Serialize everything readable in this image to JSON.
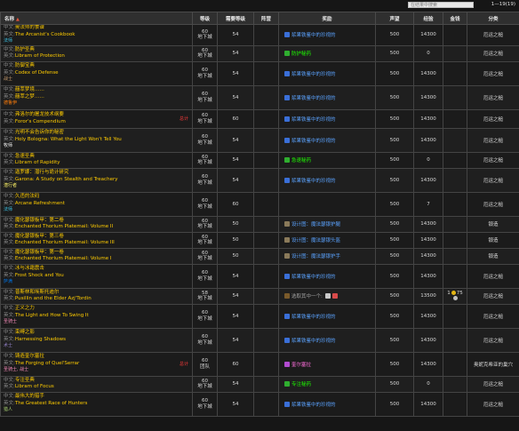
{
  "topbar": {
    "search_placeholder": "在结果中搜索",
    "pager": "1—19(19)"
  },
  "headers": {
    "name": "名称",
    "level": "等级",
    "req_level": "需要等级",
    "camp": "阵营",
    "reward": "奖励",
    "rep": "声望",
    "xp": "经验",
    "money": "金钱",
    "category": "分类"
  },
  "labels": {
    "cn": "中文:",
    "en": "英文:"
  },
  "colors": {
    "cn_text": "#ffcc00",
    "en_text": "#ffcc00",
    "teal": "#1e90ff",
    "skin": "#5ba3ff",
    "green": "#1eff00",
    "pink": "#ff6fdc",
    "red": "#ff3b3b"
  },
  "rows": [
    {
      "cn": "奥法师的食谱",
      "en": "The Arcanist's Cookbook",
      "sub": "法师",
      "sub_color": "#3fc7eb",
      "level": "60",
      "level_sub": "地下城",
      "req": "54",
      "reward_text": "浆果铁鉴中的珍视的",
      "reward_color": "#5ba3ff",
      "icon": "gem-blue",
      "rep": "500",
      "xp": "14300",
      "money": "",
      "cat": "厄运之槌"
    },
    {
      "cn": "防护圣典",
      "en": "Librarn of Protection",
      "sub": "",
      "sub_color": "",
      "level": "60",
      "level_sub": "地下城",
      "req": "54",
      "reward_text": "防护秘药",
      "reward_color": "#1eff00",
      "icon": "gem-green",
      "rep": "500",
      "xp": "0",
      "money": "",
      "cat": "厄运之槌"
    },
    {
      "cn": "防御宝典",
      "en": "Codex of Defense",
      "sub": "战士",
      "sub_color": "#c79c6e",
      "level": "60",
      "level_sub": "地下城",
      "req": "54",
      "reward_text": "浆果铁鉴中的珍视的",
      "reward_color": "#5ba3ff",
      "icon": "gem-blue",
      "rep": "500",
      "xp": "14300",
      "money": "",
      "cat": "厄运之槌"
    },
    {
      "cn": "囍萃梦境……",
      "en": "囍萃之梦……",
      "sub": "德鲁伊",
      "sub_color": "#ff7d0a",
      "level": "60",
      "level_sub": "地下城",
      "req": "54",
      "reward_text": "浆果铁鉴中的珍视的",
      "reward_color": "#5ba3ff",
      "icon": "gem-blue",
      "rep": "500",
      "xp": "14300",
      "money": "",
      "cat": "厄运之槌"
    },
    {
      "cn": "弗洛尔的屠龙技术纲要",
      "en": "Foror's Compendium",
      "sub": "",
      "sub_color": "",
      "flag": "总计",
      "level": "60",
      "level_sub": "地下城",
      "req": "60",
      "reward_text": "浆果铁鉴中的珍视的",
      "reward_color": "#5ba3ff",
      "icon": "gem-blue",
      "rep": "500",
      "xp": "14300",
      "money": "",
      "cat": "厄运之槌"
    },
    {
      "cn": "光明不会告诉你的秘密",
      "en": "Holy Bologna: What the Light Won't Tell You",
      "sub": "牧师",
      "sub_color": "#ffffff",
      "level": "60",
      "level_sub": "地下城",
      "req": "54",
      "reward_text": "浆果铁鉴中的珍视的",
      "reward_color": "#5ba3ff",
      "icon": "gem-blue",
      "rep": "500",
      "xp": "14300",
      "money": "",
      "cat": "厄运之槌"
    },
    {
      "cn": "急速圣典",
      "en": "Librarn of Rapidity",
      "sub": "",
      "sub_color": "",
      "level": "60",
      "level_sub": "地下城",
      "req": "54",
      "reward_text": "急速秘药",
      "reward_color": "#1eff00",
      "icon": "gem-green",
      "rep": "500",
      "xp": "0",
      "money": "",
      "cat": "厄运之槌"
    },
    {
      "cn": "迦罗娜：潜行与诡计研究",
      "en": "Garona: A Study on Stealth and Treachery",
      "sub": "潜行者",
      "sub_color": "#fff569",
      "level": "60",
      "level_sub": "地下城",
      "req": "54",
      "reward_text": "浆果铁鉴中的珍视的",
      "reward_color": "#5ba3ff",
      "icon": "gem-blue",
      "rep": "500",
      "xp": "14300",
      "money": "",
      "cat": "厄运之槌"
    },
    {
      "cn": "久违的法码",
      "en": "Arcane Refreshment",
      "sub": "法师",
      "sub_color": "#3fc7eb",
      "level": "60",
      "level_sub": "地下城",
      "req": "60",
      "reward_text": "",
      "reward_color": "",
      "icon": "",
      "rep": "500",
      "xp": "7",
      "money": "",
      "cat": "厄运之槌"
    },
    {
      "cn": "魔化瑟银板甲：第二卷",
      "en": "Enchanted Thorium Platemail: Volume II",
      "sub": "",
      "sub_color": "",
      "level": "60",
      "level_sub": "地下城",
      "req": "50",
      "reward_text": "设计图：魔法瑟银护腿",
      "reward_color": "#5ba3ff",
      "icon": "scroll",
      "rep": "500",
      "xp": "14300",
      "money": "",
      "cat": "锻造"
    },
    {
      "cn": "魔化瑟银板甲：第三卷",
      "en": "Enchanted Thorium Platemail: Volume III",
      "sub": "",
      "sub_color": "",
      "level": "60",
      "level_sub": "地下城",
      "req": "50",
      "reward_text": "设计图：魔法瑟银头盔",
      "reward_color": "#5ba3ff",
      "icon": "scroll",
      "rep": "500",
      "xp": "14300",
      "money": "",
      "cat": "锻造"
    },
    {
      "cn": "魔化瑟银板甲：第一卷",
      "en": "Enchanted Thorium Platemail: Volume I",
      "sub": "",
      "sub_color": "",
      "level": "60",
      "level_sub": "地下城",
      "req": "50",
      "reward_text": "设计图：魔法瑟银护手",
      "reward_color": "#5ba3ff",
      "icon": "scroll",
      "rep": "500",
      "xp": "14300",
      "money": "",
      "cat": "锻造"
    },
    {
      "cn": "冰与冰霜震击",
      "en": "Frost Shock and You",
      "sub": "萨满",
      "sub_color": "#0070de",
      "level": "60",
      "level_sub": "地下城",
      "req": "54",
      "reward_text": "浆果铁鉴中的珍视的",
      "reward_color": "#5ba3ff",
      "icon": "gem-blue",
      "rep": "500",
      "xp": "14300",
      "money": "",
      "cat": "厄运之槌"
    },
    {
      "cn": "普斯林和埃斯托迪尔",
      "en": "Pusillin and the Elder Azj'Tordin",
      "sub": "",
      "sub_color": "",
      "level": "58",
      "level_sub": "地下城",
      "req": "54",
      "reward_text": "选取其中一个:",
      "reward_color": "#a0a0a0",
      "icon": "multi",
      "rep": "500",
      "xp": "13500",
      "money": "1 75",
      "cat": "厄运之槌"
    },
    {
      "cn": "正义之力",
      "en": "The Light and How To Swing It",
      "sub": "圣骑士",
      "sub_color": "#f58cba",
      "level": "60",
      "level_sub": "地下城",
      "req": "54",
      "reward_text": "浆果铁鉴中的珍视的",
      "reward_color": "#5ba3ff",
      "icon": "gem-blue",
      "rep": "500",
      "xp": "14300",
      "money": "",
      "cat": "厄运之槌"
    },
    {
      "cn": "束缚之影",
      "en": "Harnessing Shadows",
      "sub": "术士",
      "sub_color": "#9482c9",
      "level": "60",
      "level_sub": "地下城",
      "req": "54",
      "reward_text": "浆果铁鉴中的珍视的",
      "reward_color": "#5ba3ff",
      "icon": "gem-blue",
      "rep": "500",
      "xp": "14300",
      "money": "",
      "cat": "厄运之槌"
    },
    {
      "cn": "铸造奎尔塞拉",
      "en": "The Forging of Quel'Serrar",
      "sub": "圣骑士, 战士",
      "sub_color": "#f58cba",
      "flag": "总计",
      "level": "60",
      "level_sub": "团队",
      "req": "60",
      "reward_text": "奎尔塞拉",
      "reward_color": "#ff6fdc",
      "icon": "sword",
      "rep": "500",
      "xp": "14300",
      "money": "",
      "cat": "奥妮克希亚的巢穴"
    },
    {
      "cn": "专注圣典",
      "en": "Librarn of Focus",
      "sub": "",
      "sub_color": "",
      "level": "60",
      "level_sub": "地下城",
      "req": "54",
      "reward_text": "专注秘药",
      "reward_color": "#1eff00",
      "icon": "gem-green",
      "rep": "500",
      "xp": "0",
      "money": "",
      "cat": "厄运之槌"
    },
    {
      "cn": "最伟大的猎手",
      "en": "The Greatest Race of Hunters",
      "sub": "猎人",
      "sub_color": "#abd473",
      "level": "60",
      "level_sub": "地下城",
      "req": "54",
      "reward_text": "浆果铁鉴中的珍视的",
      "reward_color": "#5ba3ff",
      "icon": "gem-blue",
      "rep": "500",
      "xp": "14300",
      "money": "",
      "cat": "厄运之槌"
    }
  ]
}
